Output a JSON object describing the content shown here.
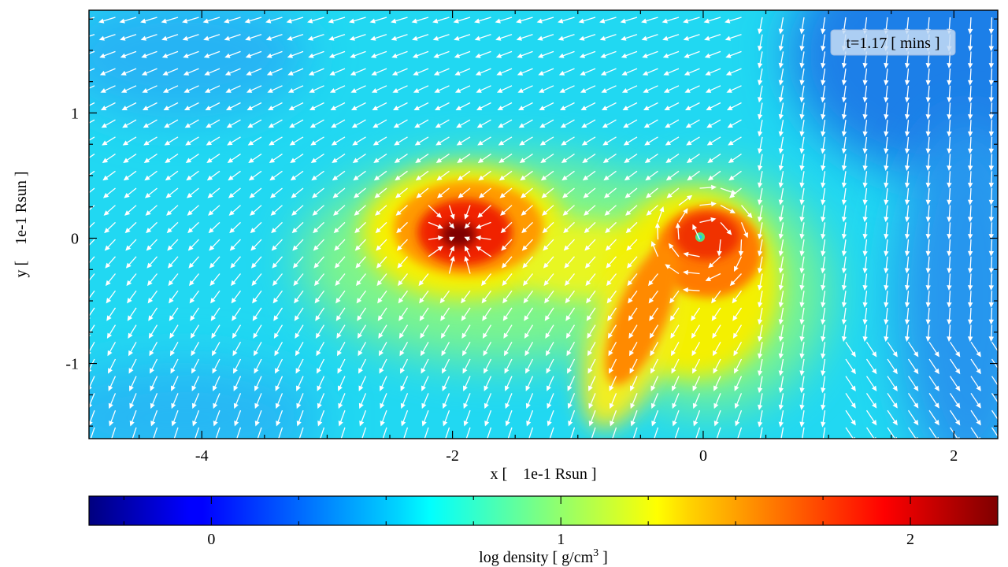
{
  "chart_data": {
    "type": "heatmap",
    "title": "",
    "xlabel": "x [    1e-1 Rsun ]",
    "ylabel": "y [    1e-1 Rsun ]",
    "xlim": [
      -4.9,
      2.35
    ],
    "ylim": [
      -1.6,
      1.82
    ],
    "x_ticks": [
      -4,
      -2,
      0,
      2
    ],
    "x_tick_labels": [
      "-4",
      "-2",
      "0",
      "2"
    ],
    "y_ticks": [
      -1,
      0,
      1
    ],
    "y_tick_labels": [
      "-1",
      "0",
      "1"
    ],
    "time_label": "t=1.17 [ mins ]",
    "colorbar": {
      "label": "log density [ g/cm",
      "label_exponent": "3",
      "label_suffix": " ]",
      "range": [
        -0.35,
        2.25
      ],
      "ticks": [
        0,
        1,
        2
      ],
      "tick_labels": [
        "0",
        "1",
        "2"
      ],
      "colormap": "jet"
    },
    "background_log_density": 0.6,
    "features": [
      {
        "name": "left-core",
        "cx": -1.95,
        "cy": 0.0,
        "peak": 2.25
      },
      {
        "name": "right-core",
        "cx": 0.05,
        "cy": 0.02,
        "peak": 1.9
      },
      {
        "name": "tidal-tail",
        "from": [
          -0.4,
          -1.3
        ],
        "to": [
          0.2,
          0.0
        ],
        "value": 1.65
      }
    ],
    "vector_field": "velocity arrows (white)",
    "grid": false
  },
  "colors": {
    "arrow": "#ffffff",
    "frame": "#000000",
    "time_box": "#a8c8f0"
  }
}
